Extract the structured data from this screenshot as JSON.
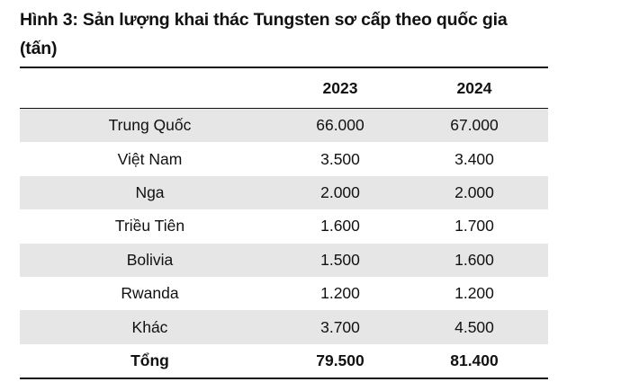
{
  "title_line1": "Hình 3: Sản lượng khai thác Tungsten sơ cấp theo quốc gia",
  "title_line2": "(tấn)",
  "columns": [
    "",
    "2023",
    "2024"
  ],
  "rows": [
    {
      "country": "Trung Quốc",
      "y2023": "66.000",
      "y2024": "67.000"
    },
    {
      "country": "Việt Nam",
      "y2023": "3.500",
      "y2024": "3.400"
    },
    {
      "country": "Nga",
      "y2023": "2.000",
      "y2024": "2.000"
    },
    {
      "country": "Triều Tiên",
      "y2023": "1.600",
      "y2024": "1.700"
    },
    {
      "country": "Bolivia",
      "y2023": "1.500",
      "y2024": "1.600"
    },
    {
      "country": "Rwanda",
      "y2023": "1.200",
      "y2024": "1.200"
    },
    {
      "country": "Khác",
      "y2023": "3.700",
      "y2024": "4.500"
    }
  ],
  "total": {
    "label": "Tổng",
    "y2023": "79.500",
    "y2024": "81.400"
  },
  "colors": {
    "row_shade": "#e6e6e6",
    "text": "#111111",
    "rule": "#111111"
  }
}
